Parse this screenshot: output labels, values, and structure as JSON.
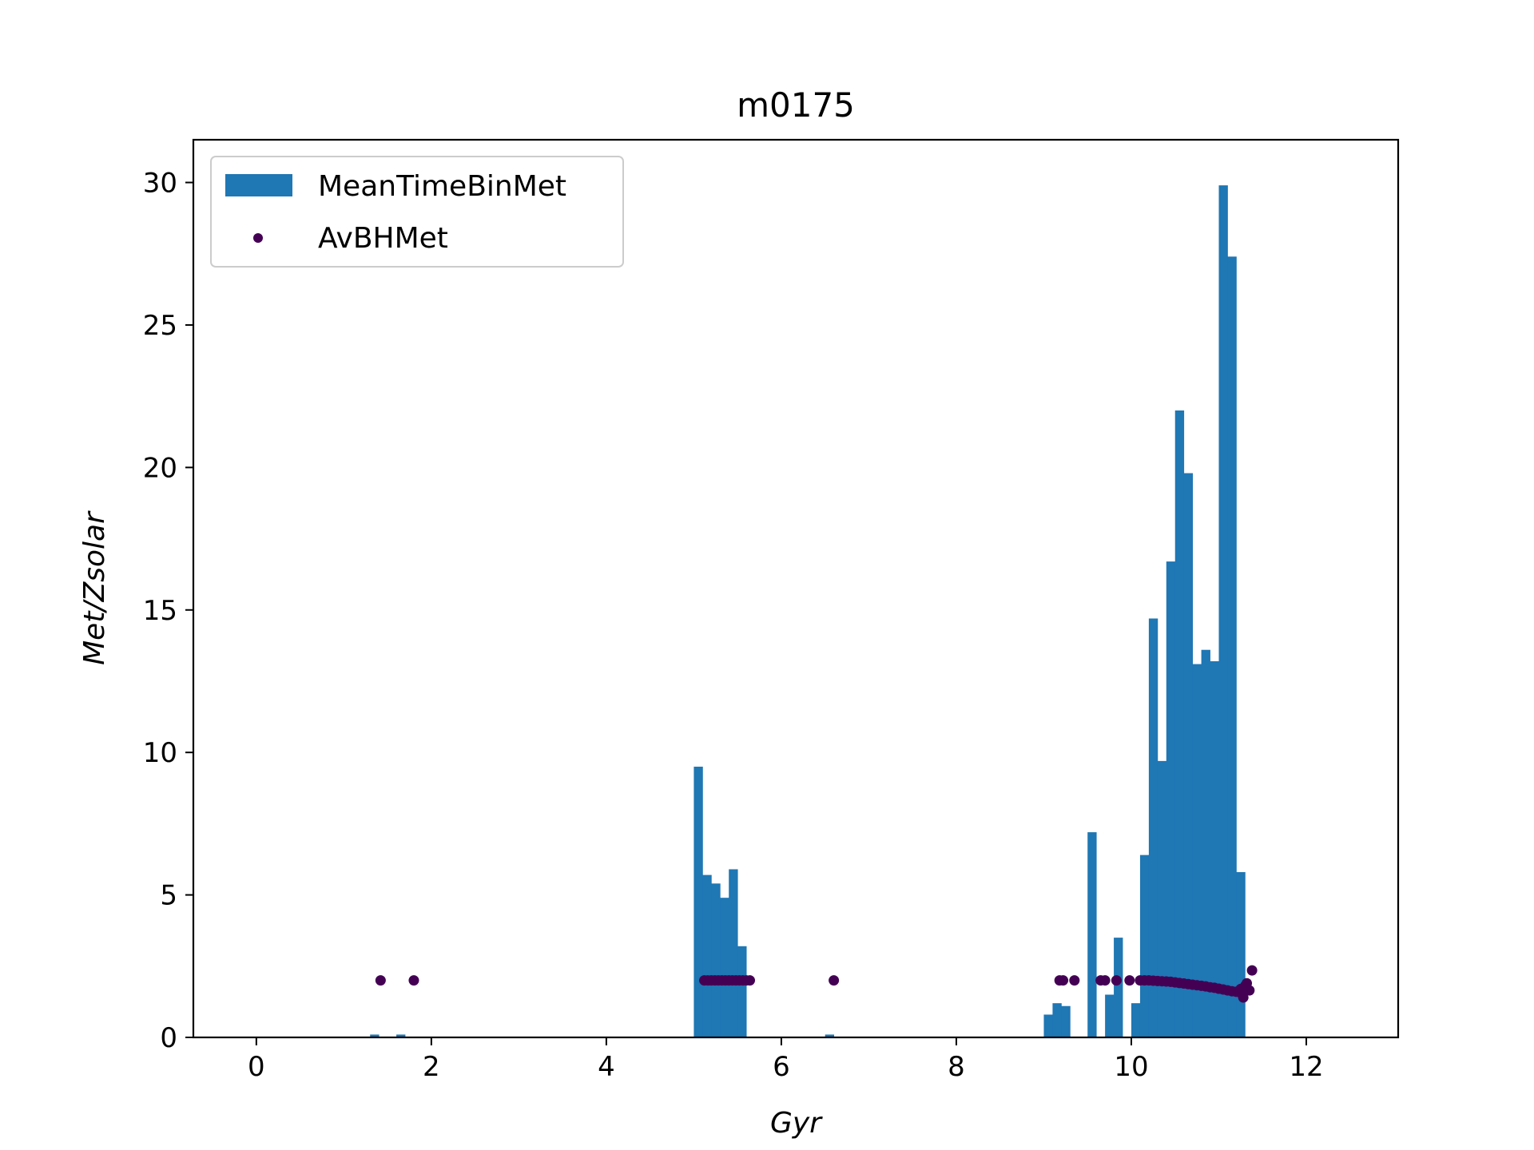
{
  "chart_data": {
    "type": "bar",
    "title": "m0175",
    "xlabel": "Gyr",
    "ylabel": "Met/Zsolar",
    "xlim": [
      -0.72,
      13.05
    ],
    "ylim": [
      0,
      31.5
    ],
    "xticks": [
      0,
      2,
      4,
      6,
      8,
      10,
      12
    ],
    "yticks": [
      0,
      5,
      10,
      15,
      20,
      25,
      30
    ],
    "legend_position": "upper-left",
    "bin_width": 0.1,
    "colors": {
      "bars": "#1f77b4",
      "points": "#440154"
    },
    "series": [
      {
        "name": "MeanTimeBinMet",
        "kind": "bar",
        "bins": [
          {
            "x": 1.3,
            "y": 0.1
          },
          {
            "x": 1.6,
            "y": 0.1
          },
          {
            "x": 5.0,
            "y": 9.5
          },
          {
            "x": 5.1,
            "y": 5.7
          },
          {
            "x": 5.2,
            "y": 5.4
          },
          {
            "x": 5.3,
            "y": 4.9
          },
          {
            "x": 5.4,
            "y": 5.9
          },
          {
            "x": 5.5,
            "y": 3.2
          },
          {
            "x": 6.5,
            "y": 0.1
          },
          {
            "x": 9.0,
            "y": 0.8
          },
          {
            "x": 9.1,
            "y": 1.2
          },
          {
            "x": 9.2,
            "y": 1.1
          },
          {
            "x": 9.5,
            "y": 7.2
          },
          {
            "x": 9.7,
            "y": 1.5
          },
          {
            "x": 9.8,
            "y": 3.5
          },
          {
            "x": 10.0,
            "y": 1.2
          },
          {
            "x": 10.1,
            "y": 6.4
          },
          {
            "x": 10.2,
            "y": 14.7
          },
          {
            "x": 10.3,
            "y": 9.7
          },
          {
            "x": 10.4,
            "y": 16.7
          },
          {
            "x": 10.5,
            "y": 22.0
          },
          {
            "x": 10.6,
            "y": 19.8
          },
          {
            "x": 10.7,
            "y": 13.1
          },
          {
            "x": 10.8,
            "y": 13.6
          },
          {
            "x": 10.9,
            "y": 13.2
          },
          {
            "x": 11.0,
            "y": 29.9
          },
          {
            "x": 11.1,
            "y": 27.4
          },
          {
            "x": 11.2,
            "y": 5.8
          }
        ]
      },
      {
        "name": "AvBHMet",
        "kind": "scatter",
        "points": [
          {
            "x": 1.42,
            "y": 2.0
          },
          {
            "x": 1.8,
            "y": 2.0
          },
          {
            "x": 5.12,
            "y": 2.0
          },
          {
            "x": 5.16,
            "y": 2.0
          },
          {
            "x": 5.2,
            "y": 2.0
          },
          {
            "x": 5.24,
            "y": 2.0
          },
          {
            "x": 5.28,
            "y": 2.0
          },
          {
            "x": 5.32,
            "y": 2.0
          },
          {
            "x": 5.36,
            "y": 2.0
          },
          {
            "x": 5.4,
            "y": 2.0
          },
          {
            "x": 5.44,
            "y": 2.0
          },
          {
            "x": 5.48,
            "y": 2.0
          },
          {
            "x": 5.52,
            "y": 2.0
          },
          {
            "x": 5.56,
            "y": 2.0
          },
          {
            "x": 5.6,
            "y": 2.0
          },
          {
            "x": 5.64,
            "y": 2.0
          },
          {
            "x": 6.6,
            "y": 2.0
          },
          {
            "x": 9.18,
            "y": 2.0
          },
          {
            "x": 9.22,
            "y": 2.0
          },
          {
            "x": 9.35,
            "y": 2.0
          },
          {
            "x": 9.65,
            "y": 2.0
          },
          {
            "x": 9.7,
            "y": 2.0
          },
          {
            "x": 9.83,
            "y": 2.0
          },
          {
            "x": 9.98,
            "y": 2.0
          },
          {
            "x": 10.1,
            "y": 2.0
          },
          {
            "x": 10.15,
            "y": 2.0
          },
          {
            "x": 10.2,
            "y": 2.0
          },
          {
            "x": 10.25,
            "y": 1.99
          },
          {
            "x": 10.3,
            "y": 1.98
          },
          {
            "x": 10.35,
            "y": 1.97
          },
          {
            "x": 10.4,
            "y": 1.96
          },
          {
            "x": 10.45,
            "y": 1.95
          },
          {
            "x": 10.5,
            "y": 1.93
          },
          {
            "x": 10.55,
            "y": 1.91
          },
          {
            "x": 10.6,
            "y": 1.89
          },
          {
            "x": 10.65,
            "y": 1.87
          },
          {
            "x": 10.7,
            "y": 1.85
          },
          {
            "x": 10.75,
            "y": 1.83
          },
          {
            "x": 10.8,
            "y": 1.81
          },
          {
            "x": 10.85,
            "y": 1.79
          },
          {
            "x": 10.9,
            "y": 1.76
          },
          {
            "x": 10.95,
            "y": 1.74
          },
          {
            "x": 11.0,
            "y": 1.71
          },
          {
            "x": 11.05,
            "y": 1.68
          },
          {
            "x": 11.1,
            "y": 1.65
          },
          {
            "x": 11.15,
            "y": 1.62
          },
          {
            "x": 11.2,
            "y": 1.6
          },
          {
            "x": 11.25,
            "y": 1.7
          },
          {
            "x": 11.27,
            "y": 1.5
          },
          {
            "x": 11.28,
            "y": 1.4
          },
          {
            "x": 11.3,
            "y": 1.8
          },
          {
            "x": 11.32,
            "y": 1.9
          },
          {
            "x": 11.35,
            "y": 1.65
          },
          {
            "x": 11.38,
            "y": 2.35
          }
        ]
      }
    ]
  }
}
